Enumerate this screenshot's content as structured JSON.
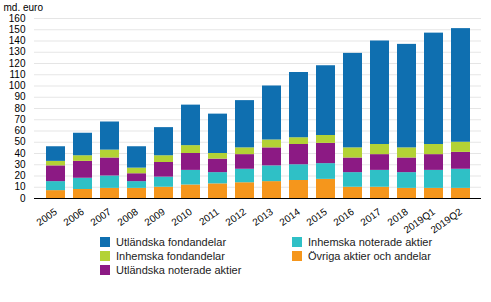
{
  "chart_data": {
    "type": "bar",
    "stacked": true,
    "grid": true,
    "y_label": "md. euro",
    "categories": [
      "2005",
      "2006",
      "2007",
      "2008",
      "2009",
      "2010",
      "2011",
      "2012",
      "2013",
      "2014",
      "2015",
      "2016",
      "2017",
      "2018",
      "2019Q1",
      "2019Q2"
    ],
    "series": [
      {
        "name": "Övriga aktier och andelar",
        "color": "#f5961c",
        "values": [
          7,
          8,
          9,
          9,
          10,
          12,
          13,
          14,
          15,
          16,
          17,
          10,
          10,
          9,
          9,
          9
        ]
      },
      {
        "name": "Inhemska noterade aktier",
        "color": "#2fc0c6",
        "values": [
          8,
          10,
          11,
          6,
          9,
          13,
          10,
          12,
          14,
          14,
          14,
          13,
          15,
          14,
          16,
          17
        ]
      },
      {
        "name": "Utländska noterade aktier",
        "color": "#8c1a84",
        "values": [
          14,
          15,
          16,
          7,
          13,
          15,
          12,
          13,
          16,
          18,
          18,
          13,
          14,
          13,
          14,
          15
        ]
      },
      {
        "name": "Inhemska fondandelar",
        "color": "#b3d235",
        "values": [
          4,
          5,
          7,
          5,
          6,
          7,
          5,
          6,
          7,
          6,
          7,
          9,
          9,
          9,
          9,
          9
        ]
      },
      {
        "name": "Utländska fondandelar",
        "color": "#0f6fb0",
        "values": [
          13,
          20,
          25,
          19,
          25,
          36,
          35,
          42,
          48,
          58,
          62,
          84,
          92,
          92,
          99,
          101
        ]
      }
    ],
    "ylim": [
      0,
      160
    ],
    "yticks": [
      0,
      10,
      20,
      30,
      40,
      50,
      60,
      70,
      80,
      90,
      100,
      110,
      120,
      130,
      140,
      150,
      160
    ]
  }
}
